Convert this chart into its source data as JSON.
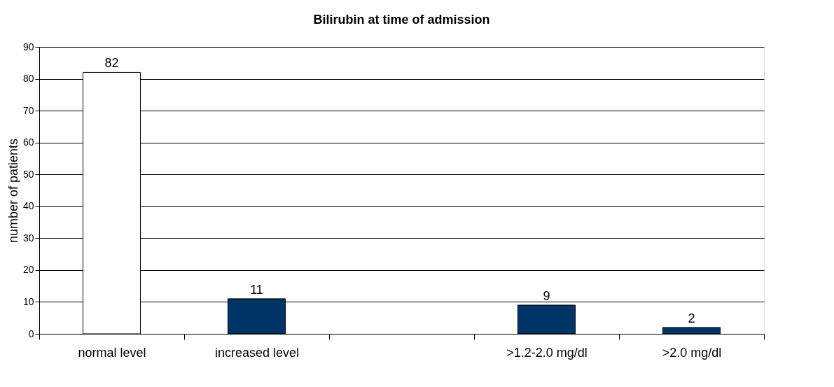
{
  "chart_data": {
    "type": "bar",
    "title": "Bilirubin at time of admission",
    "categories": [
      "normal level",
      "increased level",
      null,
      ">1.2-2.0 mg/dl",
      ">2.0 mg/dl"
    ],
    "values": [
      82,
      11,
      null,
      9,
      2
    ],
    "colors": [
      "#ffffff",
      "#003366",
      "#003366",
      "#003366",
      "#003366"
    ],
    "ylabel": "number of patients",
    "ylim": [
      0,
      90
    ],
    "yticks": [
      0,
      10,
      20,
      30,
      40,
      50,
      60,
      70,
      80,
      90
    ],
    "grid": "y",
    "data_labels": true
  }
}
